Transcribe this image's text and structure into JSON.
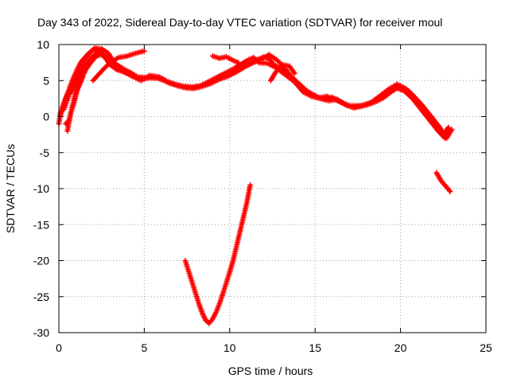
{
  "chart_data": {
    "type": "scatter",
    "title": "Day 343 of 2022, Sidereal Day-to-day VTEC variation (SDTVAR) for receiver moul",
    "xlabel": "GPS time / hours",
    "ylabel": "SDTVAR / TECUs",
    "xlim": [
      0,
      25
    ],
    "ylim": [
      -30,
      10
    ],
    "xticks": [
      0,
      5,
      10,
      15,
      20,
      25
    ],
    "yticks": [
      -30,
      -25,
      -20,
      -15,
      -10,
      -5,
      0,
      5,
      10
    ],
    "xtick_labels": [
      "0",
      "5",
      "10",
      "15",
      "20",
      "25"
    ],
    "ytick_labels": [
      "-30",
      "-25",
      "-20",
      "-15",
      "-10",
      "-5",
      "0",
      "5",
      "10"
    ],
    "grid": true,
    "marker": "+",
    "series": [
      {
        "name": "SDTVAR",
        "color": "#ff0000",
        "tracks": [
          [
            [
              0.0,
              -1.0
            ],
            [
              0.1,
              0.5
            ],
            [
              0.3,
              2.0
            ],
            [
              0.6,
              3.5
            ],
            [
              0.9,
              5.0
            ],
            [
              1.2,
              6.5
            ],
            [
              1.5,
              7.8
            ],
            [
              1.8,
              8.8
            ],
            [
              2.1,
              9.5
            ],
            [
              2.5,
              9.4
            ],
            [
              2.9,
              8.8
            ],
            [
              3.2,
              7.6
            ],
            [
              3.6,
              6.6
            ],
            [
              4.0,
              6.0
            ],
            [
              4.5,
              5.4
            ],
            [
              5.0,
              5.2
            ],
            [
              5.5,
              5.6
            ],
            [
              6.0,
              5.2
            ],
            [
              6.5,
              4.6
            ],
            [
              7.0,
              4.3
            ],
            [
              7.5,
              4.1
            ],
            [
              8.0,
              4.0
            ],
            [
              8.5,
              4.3
            ],
            [
              9.0,
              4.8
            ],
            [
              9.5,
              5.3
            ],
            [
              10.0,
              5.8
            ],
            [
              10.5,
              6.5
            ],
            [
              11.0,
              7.2
            ],
            [
              11.5,
              7.8
            ],
            [
              12.0,
              8.3
            ],
            [
              12.3,
              8.0
            ],
            [
              12.6,
              7.2
            ],
            [
              13.0,
              6.6
            ],
            [
              13.5,
              5.8
            ],
            [
              14.0,
              4.7
            ],
            [
              14.5,
              3.6
            ],
            [
              15.0,
              2.9
            ],
            [
              15.5,
              2.4
            ],
            [
              16.0,
              2.7
            ],
            [
              16.5,
              2.0
            ],
            [
              17.0,
              1.5
            ],
            [
              17.5,
              1.5
            ],
            [
              18.0,
              1.6
            ],
            [
              18.5,
              2.0
            ],
            [
              19.0,
              2.6
            ],
            [
              19.5,
              3.5
            ],
            [
              20.0,
              4.2
            ],
            [
              20.5,
              3.5
            ],
            [
              21.0,
              2.2
            ],
            [
              21.5,
              0.5
            ],
            [
              22.0,
              -1.0
            ],
            [
              22.5,
              -2.5
            ],
            [
              22.8,
              -1.5
            ]
          ],
          [
            [
              0.1,
              0.2
            ],
            [
              0.4,
              2.5
            ],
            [
              0.7,
              4.5
            ],
            [
              1.0,
              6.2
            ],
            [
              1.3,
              7.6
            ],
            [
              1.7,
              8.7
            ],
            [
              2.0,
              9.3
            ],
            [
              2.4,
              9.0
            ],
            [
              2.7,
              8.4
            ],
            [
              3.0,
              7.8
            ],
            [
              3.4,
              7.2
            ],
            [
              3.8,
              6.6
            ],
            [
              4.2,
              6.1
            ],
            [
              4.6,
              5.5
            ],
            [
              5.2,
              5.4
            ],
            [
              5.8,
              5.3
            ],
            [
              6.3,
              4.9
            ],
            [
              6.8,
              4.5
            ],
            [
              7.3,
              4.2
            ],
            [
              7.8,
              4.1
            ],
            [
              8.3,
              4.3
            ],
            [
              8.8,
              4.9
            ],
            [
              9.2,
              5.4
            ],
            [
              9.7,
              6.0
            ],
            [
              10.2,
              6.6
            ],
            [
              10.6,
              7.2
            ],
            [
              11.1,
              7.9
            ],
            [
              11.4,
              8.2
            ],
            [
              11.7,
              7.5
            ],
            [
              12.2,
              7.4
            ],
            [
              12.7,
              6.8
            ],
            [
              13.2,
              5.9
            ],
            [
              13.7,
              5.0
            ],
            [
              14.2,
              3.8
            ],
            [
              14.7,
              3.2
            ],
            [
              15.2,
              2.6
            ],
            [
              15.7,
              2.8
            ],
            [
              16.2,
              2.3
            ],
            [
              16.7,
              1.8
            ],
            [
              17.2,
              1.3
            ],
            [
              17.7,
              1.4
            ],
            [
              18.2,
              1.8
            ],
            [
              18.7,
              2.4
            ],
            [
              19.2,
              3.2
            ],
            [
              19.7,
              4.0
            ],
            [
              20.2,
              3.6
            ],
            [
              20.7,
              2.5
            ],
            [
              21.2,
              1.0
            ],
            [
              21.7,
              -0.5
            ],
            [
              22.2,
              -2.0
            ],
            [
              22.6,
              -3.0
            ],
            [
              22.9,
              -2.0
            ]
          ],
          [
            [
              0.3,
              1.0
            ],
            [
              0.6,
              3.0
            ],
            [
              0.9,
              4.2
            ],
            [
              1.3,
              6.0
            ],
            [
              1.6,
              7.2
            ],
            [
              1.9,
              8.2
            ],
            [
              2.2,
              8.8
            ],
            [
              2.6,
              8.5
            ],
            [
              3.0,
              7.2
            ],
            [
              3.4,
              6.5
            ],
            [
              3.8,
              6.2
            ],
            [
              4.3,
              5.6
            ],
            [
              4.8,
              5.0
            ],
            [
              5.3,
              5.7
            ],
            [
              5.9,
              5.5
            ],
            [
              6.4,
              4.8
            ],
            [
              6.9,
              4.3
            ],
            [
              7.4,
              4.0
            ],
            [
              7.9,
              3.9
            ],
            [
              8.4,
              4.2
            ],
            [
              8.9,
              4.6
            ],
            [
              9.4,
              5.2
            ],
            [
              9.9,
              5.6
            ],
            [
              10.4,
              6.2
            ],
            [
              10.9,
              6.9
            ],
            [
              11.3,
              7.4
            ],
            [
              11.8,
              7.9
            ],
            [
              12.3,
              8.6
            ],
            [
              12.8,
              7.8
            ],
            [
              13.3,
              6.5
            ],
            [
              13.8,
              4.9
            ],
            [
              14.3,
              3.4
            ],
            [
              14.8,
              2.8
            ],
            [
              15.3,
              2.5
            ],
            [
              15.8,
              2.2
            ],
            [
              16.3,
              2.4
            ],
            [
              16.8,
              1.6
            ],
            [
              17.3,
              1.2
            ],
            [
              17.8,
              1.6
            ],
            [
              18.3,
              2.0
            ],
            [
              18.8,
              2.9
            ],
            [
              19.3,
              3.8
            ],
            [
              19.8,
              4.5
            ],
            [
              20.3,
              3.9
            ],
            [
              20.8,
              2.8
            ],
            [
              21.3,
              1.5
            ],
            [
              21.8,
              0.0
            ],
            [
              22.3,
              -1.5
            ],
            [
              22.7,
              -3.0
            ],
            [
              23.0,
              -1.8
            ]
          ],
          [
            [
              0.4,
              -1.0
            ],
            [
              0.6,
              -0.5
            ],
            [
              0.8,
              1.5
            ],
            [
              1.0,
              3.5
            ],
            [
              1.3,
              5.2
            ],
            [
              1.6,
              6.6
            ],
            [
              1.9,
              7.6
            ],
            [
              2.2,
              8.4
            ],
            [
              2.5,
              8.6
            ],
            [
              2.9,
              8.0
            ]
          ],
          [
            [
              0.5,
              -2.0
            ],
            [
              0.7,
              0.5
            ],
            [
              0.9,
              2.0
            ],
            [
              1.1,
              3.8
            ],
            [
              1.4,
              5.5
            ]
          ],
          [
            [
              2.0,
              5.0
            ],
            [
              2.5,
              6.3
            ],
            [
              3.0,
              7.5
            ],
            [
              3.5,
              8.2
            ],
            [
              4.0,
              8.4
            ],
            [
              4.5,
              8.8
            ],
            [
              5.0,
              9.1
            ]
          ],
          [
            [
              9.0,
              8.4
            ],
            [
              9.4,
              8.1
            ],
            [
              9.8,
              8.3
            ],
            [
              10.2,
              7.8
            ],
            [
              10.5,
              7.5
            ]
          ],
          [
            [
              12.4,
              5.0
            ],
            [
              12.7,
              6.2
            ],
            [
              13.1,
              7.2
            ],
            [
              13.5,
              7.0
            ],
            [
              13.8,
              6.0
            ]
          ],
          [
            [
              22.1,
              -7.8
            ],
            [
              22.4,
              -9.0
            ],
            [
              22.7,
              -9.8
            ],
            [
              22.9,
              -10.4
            ]
          ],
          [
            [
              7.4,
              -20.0
            ],
            [
              7.6,
              -21.5
            ],
            [
              7.8,
              -23.0
            ],
            [
              8.0,
              -24.5
            ],
            [
              8.2,
              -26.0
            ],
            [
              8.4,
              -27.3
            ],
            [
              8.6,
              -28.3
            ],
            [
              8.8,
              -28.7
            ],
            [
              9.0,
              -28.1
            ],
            [
              9.2,
              -27.2
            ],
            [
              9.4,
              -26.0
            ],
            [
              9.6,
              -24.6
            ],
            [
              9.8,
              -23.1
            ],
            [
              10.0,
              -21.6
            ],
            [
              10.2,
              -20.0
            ],
            [
              10.4,
              -18.0
            ],
            [
              10.6,
              -16.0
            ],
            [
              10.8,
              -14.0
            ],
            [
              11.0,
              -12.0
            ],
            [
              11.2,
              -9.5
            ]
          ]
        ]
      }
    ]
  }
}
